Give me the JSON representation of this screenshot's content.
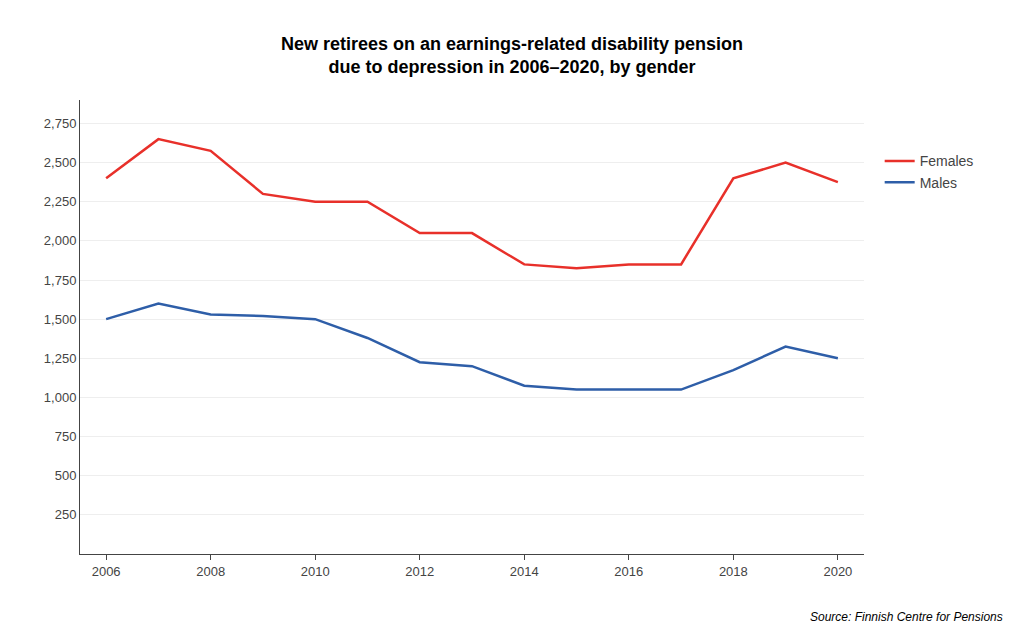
{
  "chart_data": {
    "type": "line",
    "title": "New retirees on an earnings-related disability pension\ndue to depression in 2006–2020, by gender",
    "annotations": [
      "Source: Finnish Centre for Pensions"
    ],
    "x": [
      2006,
      2007,
      2008,
      2009,
      2010,
      2011,
      2012,
      2013,
      2014,
      2015,
      2016,
      2017,
      2018,
      2019,
      2020
    ],
    "series": [
      {
        "name": "Females",
        "color": "#E8302A",
        "values": [
          2400,
          2650,
          2575,
          2300,
          2250,
          2250,
          2050,
          2050,
          1850,
          1825,
          1850,
          1850,
          2400,
          2500,
          2375
        ]
      },
      {
        "name": "Males",
        "color": "#2E5EA8",
        "values": [
          1500,
          1600,
          1530,
          1520,
          1500,
          1380,
          1225,
          1200,
          1075,
          1050,
          1050,
          1050,
          1175,
          1325,
          1250
        ]
      }
    ],
    "xlim": [
      2005.5,
      2020.5
    ],
    "xticks": [
      2006,
      2008,
      2010,
      2012,
      2014,
      2016,
      2018,
      2020
    ],
    "ylim": [
      0,
      2900
    ],
    "yticks": [
      250,
      500,
      750,
      {
        "value": 1000,
        "label": "1,000"
      },
      {
        "value": 1250,
        "label": "1,250"
      },
      {
        "value": 1500,
        "label": "1,500"
      },
      {
        "value": 1750,
        "label": "1,750"
      },
      {
        "value": 2000,
        "label": "2,000"
      },
      {
        "value": 2250,
        "label": "2,250"
      },
      {
        "value": 2500,
        "label": "2,500"
      },
      {
        "value": 2750,
        "label": "2,750"
      }
    ],
    "grid": "y",
    "legend": "right"
  }
}
